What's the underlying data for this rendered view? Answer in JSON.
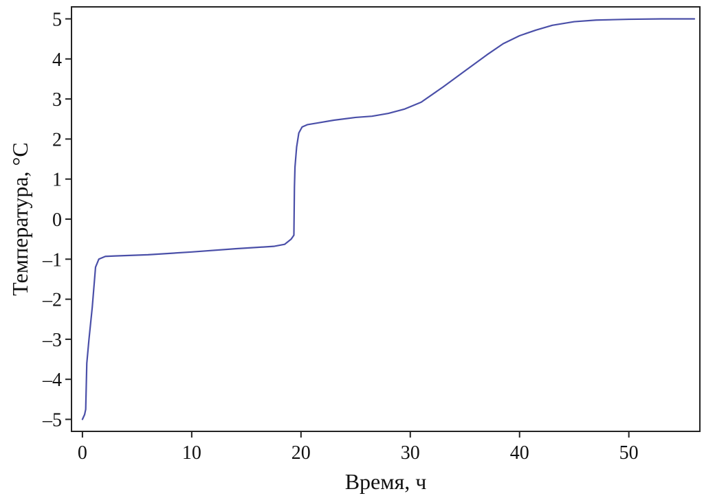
{
  "chart_data": {
    "type": "line",
    "title": "",
    "xlabel": "Время, ч",
    "ylabel": "Температура, °С",
    "xlim": [
      -1,
      56.5
    ],
    "ylim": [
      -5.3,
      5.3
    ],
    "xticks": [
      0,
      10,
      20,
      30,
      40,
      50
    ],
    "xtick_labels": [
      "0",
      "10",
      "20",
      "30",
      "40",
      "50"
    ],
    "yticks": [
      5,
      4,
      3,
      2,
      1,
      0,
      -1,
      -2,
      -3,
      -4,
      -5
    ],
    "ytick_labels": [
      "5",
      "4",
      "3",
      "2",
      "1",
      "0",
      "–1",
      "–2",
      "–3",
      "–4",
      "–5"
    ],
    "grid": false,
    "line_color": "#4a4fa8",
    "series": [
      {
        "x": [
          0,
          0.2,
          0.3,
          0.4,
          0.6,
          0.9,
          1.2,
          1.5,
          2.1,
          3,
          6,
          10,
          14,
          17.5,
          18.5,
          19.1,
          19.35,
          19.4,
          19.45,
          19.6,
          19.8,
          20.1,
          20.6,
          21.5,
          23,
          25,
          26.5,
          28,
          29.5,
          31,
          33,
          35,
          37,
          38.5,
          40,
          41.5,
          43,
          45,
          47,
          50,
          53,
          56
        ],
        "y": [
          -5.0,
          -4.88,
          -4.75,
          -3.6,
          -3.0,
          -2.2,
          -1.2,
          -1.0,
          -0.93,
          -0.92,
          -0.89,
          -0.82,
          -0.74,
          -0.68,
          -0.63,
          -0.5,
          -0.4,
          0.8,
          1.3,
          1.8,
          2.15,
          2.3,
          2.36,
          2.4,
          2.47,
          2.54,
          2.57,
          2.64,
          2.75,
          2.92,
          3.3,
          3.7,
          4.1,
          4.38,
          4.58,
          4.72,
          4.84,
          4.93,
          4.97,
          4.99,
          5.0,
          5.0
        ]
      }
    ]
  }
}
